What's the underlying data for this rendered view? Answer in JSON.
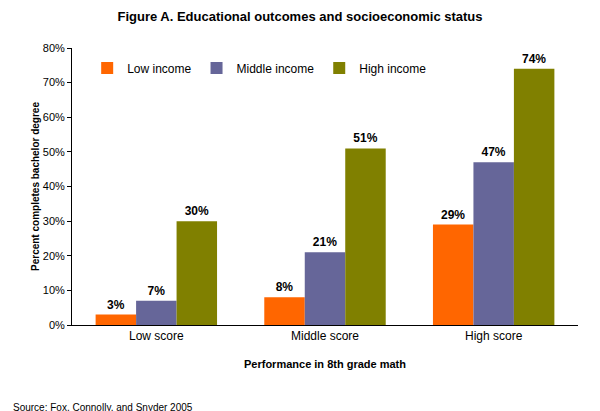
{
  "chart_data": {
    "type": "bar",
    "title": "Figure A. Educational outcomes and socioeconomic status",
    "xlabel": "Performance in 8th grade math",
    "ylabel": "Percent completes bachelor degree",
    "annotations": [
      "Source: Fox, Connolly, and Snyder 2005"
    ],
    "categories": [
      "Low score",
      "Middle score",
      "High score"
    ],
    "series": [
      {
        "name": "Low income",
        "color": "#ff6600",
        "values": [
          3,
          8,
          29
        ],
        "value_labels": [
          "3%",
          "8%",
          "29%"
        ]
      },
      {
        "name": "Middle income",
        "color": "#666699",
        "values": [
          7,
          21,
          47
        ],
        "value_labels": [
          "7%",
          "21%",
          "47%"
        ]
      },
      {
        "name": "High income",
        "color": "#808000",
        "values": [
          30,
          51,
          74
        ],
        "value_labels": [
          "30%",
          "51%",
          "74%"
        ]
      }
    ],
    "ylim": [
      0,
      80
    ],
    "yticks": [
      {
        "value": 0,
        "label": "0%"
      },
      {
        "value": 10,
        "label": "10%"
      },
      {
        "value": 20,
        "label": "20%"
      },
      {
        "value": 30,
        "label": "30%"
      },
      {
        "value": 40,
        "label": "40%"
      },
      {
        "value": 50,
        "label": "50%"
      },
      {
        "value": 60,
        "label": "60%"
      },
      {
        "value": 70,
        "label": "70%"
      },
      {
        "value": 80,
        "label": "80%"
      }
    ],
    "grid": false,
    "legend": "upper left",
    "data_labels": true
  }
}
